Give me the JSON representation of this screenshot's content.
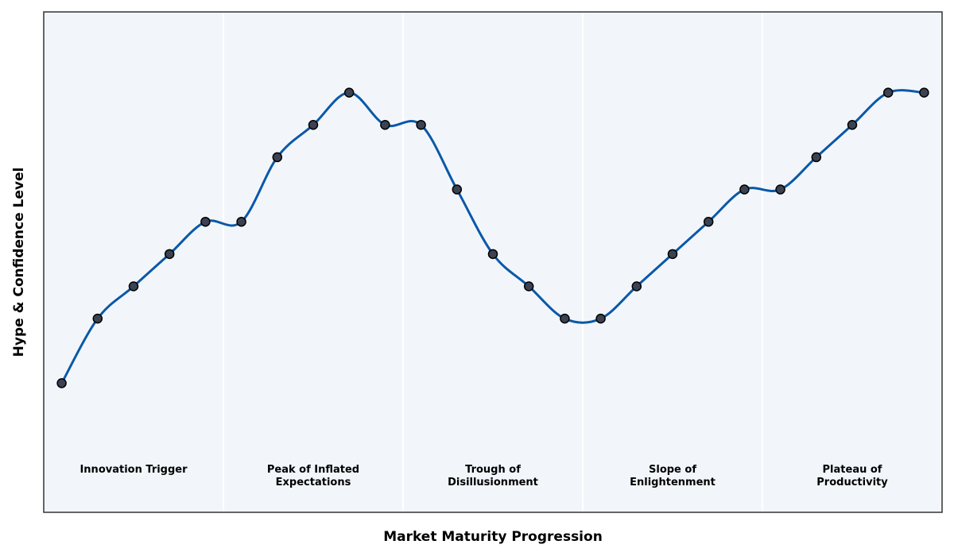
{
  "chart_data": {
    "type": "line",
    "title": "",
    "xlabel": "Market Maturity Progression",
    "ylabel": "Hype & Confidence Level",
    "ylim": [
      0,
      15.5
    ],
    "grid": false,
    "phases": [
      {
        "lines": [
          "Innovation Trigger"
        ]
      },
      {
        "lines": [
          "Peak of Inflated",
          "Expectations"
        ]
      },
      {
        "lines": [
          "Trough of",
          "Disillusionment"
        ]
      },
      {
        "lines": [
          "Slope of",
          "Enlightenment"
        ]
      },
      {
        "lines": [
          "Plateau of",
          "Productivity"
        ]
      }
    ],
    "series": [
      {
        "values": [
          4,
          6,
          7,
          8,
          9,
          9,
          11,
          12,
          13,
          12,
          12,
          10,
          8,
          7,
          6,
          6,
          7,
          8,
          9,
          10,
          10,
          11,
          12,
          13,
          13
        ]
      }
    ],
    "colors": {
      "line": "#0a58a8",
      "marker_fill": "#3b4252",
      "marker_edge": "#000000",
      "plot_bg": "#f2f6fa",
      "divider": "#ffffff",
      "frame": "#333333"
    }
  }
}
